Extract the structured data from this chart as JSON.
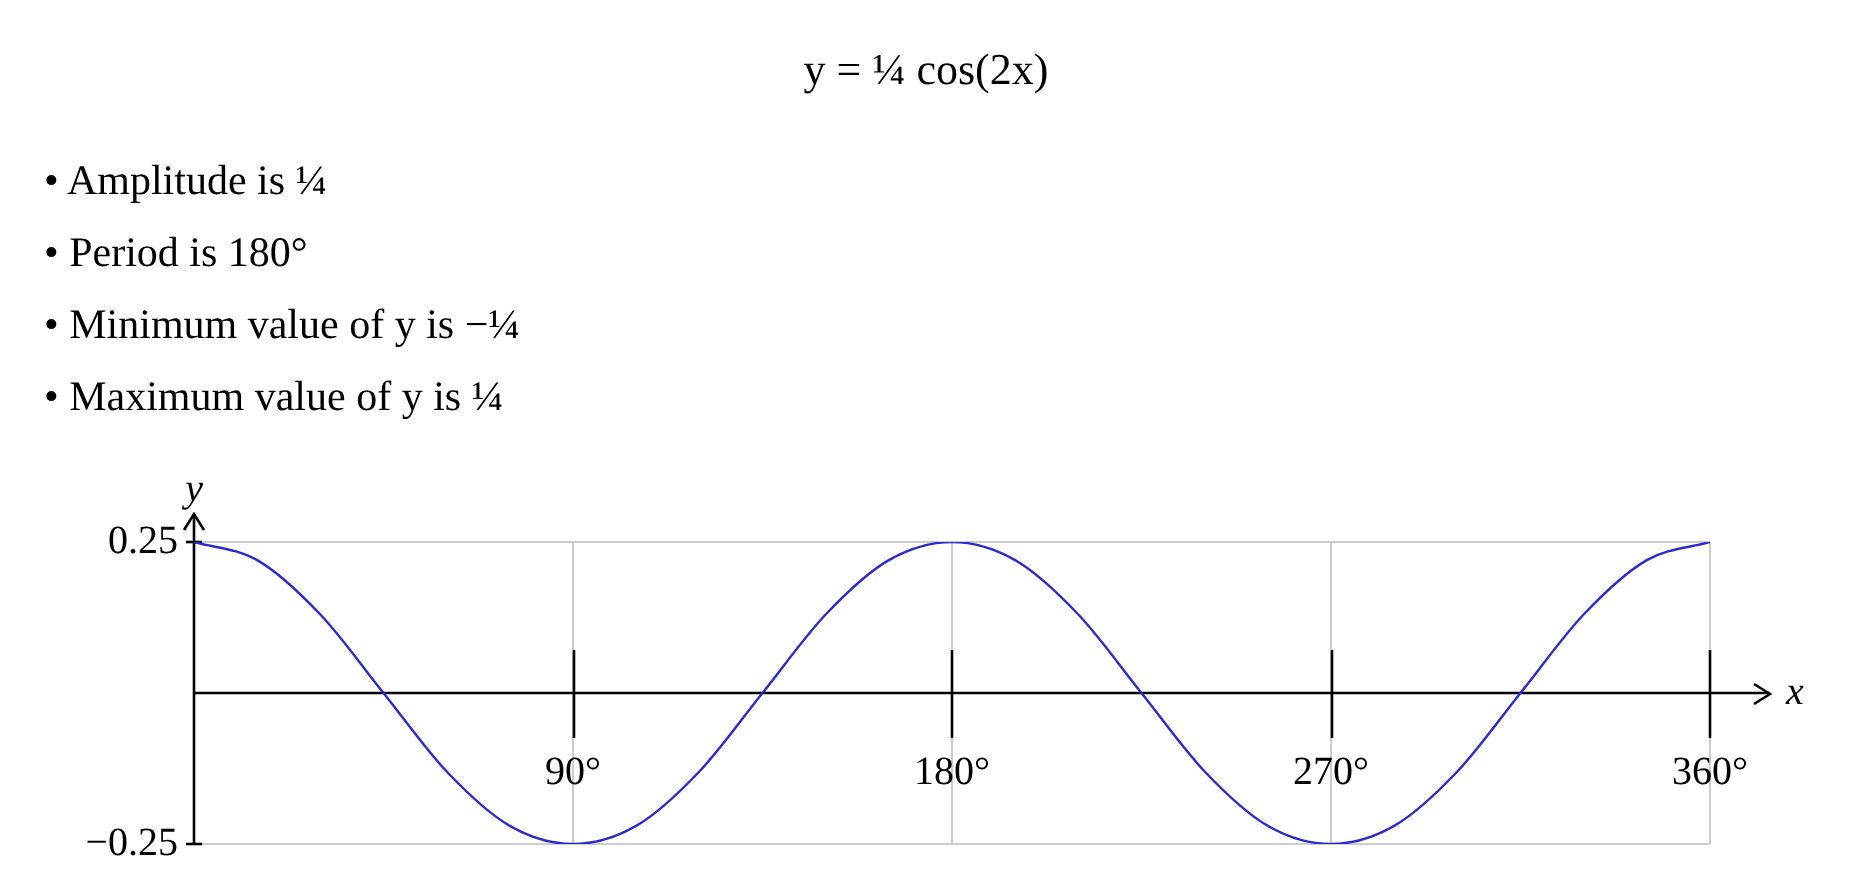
{
  "chart_data": {
    "type": "line",
    "title": "y = ¼ cos(2x)",
    "annotations": [
      "• Amplitude is ¼",
      "• Period is 180°",
      "• Minimum value of y is −¼",
      "• Maximum value of y is ¼"
    ],
    "xlabel": "x",
    "ylabel": "y",
    "x": [
      0,
      15,
      30,
      45,
      60,
      75,
      90,
      105,
      120,
      135,
      150,
      165,
      180,
      195,
      210,
      225,
      240,
      255,
      270,
      285,
      300,
      315,
      330,
      345,
      360
    ],
    "series": [
      {
        "color": "#2b2bcc",
        "values": [
          0.25,
          0.22,
          0.13,
          0,
          -0.13,
          -0.22,
          -0.25,
          -0.22,
          -0.13,
          0,
          0.13,
          0.22,
          0.25,
          0.22,
          0.13,
          0,
          -0.13,
          -0.22,
          -0.25,
          -0.22,
          -0.13,
          0,
          0.13,
          0.22,
          0.25
        ]
      }
    ],
    "xlim": [
      0,
      360
    ],
    "ylim": [
      -0.25,
      0.25
    ],
    "xticks": [
      {
        "value": 90,
        "label": "90°"
      },
      {
        "value": 180,
        "label": "180°"
      },
      {
        "value": 270,
        "label": "270°"
      },
      {
        "value": 360,
        "label": "360°"
      }
    ],
    "yticks": [
      {
        "value": -0.25,
        "label": "−0.25"
      },
      0.25
    ],
    "grid": true
  }
}
